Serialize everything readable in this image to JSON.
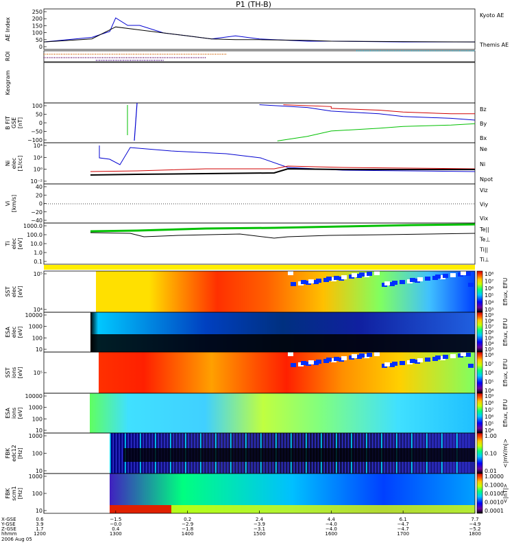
{
  "title": "P1 (TH-B)",
  "colors": {
    "red": "#d00000",
    "green": "#00c000",
    "blue": "#0000d0",
    "black": "#000000"
  },
  "panels": [
    {
      "id": "ae",
      "ylabel": [
        "AE Index"
      ],
      "ticks": [
        "250",
        "200",
        "150",
        "100",
        "50",
        "0"
      ],
      "legend": [
        {
          "text": "Kyoto AE",
          "color": "blue"
        },
        {
          "text": "Themis AE",
          "color": "black"
        }
      ]
    },
    {
      "id": "roi",
      "ylabel": [
        "ROI"
      ],
      "ticks": [],
      "legend": []
    },
    {
      "id": "keogram",
      "ylabel": [
        "Keogram"
      ],
      "ticks": [],
      "legend": []
    },
    {
      "id": "bfit",
      "ylabel": [
        "B FIT",
        "GSE",
        "[nT]"
      ],
      "ticks": [
        "100",
        "50",
        "0",
        "−50",
        "−100"
      ],
      "legend": [
        {
          "text": "Bz",
          "color": "red"
        },
        {
          "text": "By",
          "color": "green"
        },
        {
          "text": "Bx",
          "color": "blue"
        }
      ]
    },
    {
      "id": "ni",
      "ylabel": [
        "Ni",
        "elec",
        "[1/cc]"
      ],
      "ticks": [
        "10⁴",
        "10²",
        "10⁰",
        "10⁻²"
      ],
      "legend": [
        {
          "text": "Ne",
          "color": "red"
        },
        {
          "text": "Ni",
          "color": "black"
        },
        {
          "text": "Npot",
          "color": "blue"
        }
      ]
    },
    {
      "id": "vi",
      "ylabel": [
        "Vi",
        "[km/s]"
      ],
      "ticks": [
        "40",
        "20",
        "0",
        "−20",
        "−40"
      ],
      "legend": [
        {
          "text": "Viz",
          "color": "red"
        },
        {
          "text": "Viy",
          "color": "green"
        },
        {
          "text": "Vix",
          "color": "blue"
        }
      ]
    },
    {
      "id": "ti",
      "ylabel": [
        "Ti",
        "elec",
        "[eV]"
      ],
      "ticks": [
        "1000.0",
        "100.0",
        "10.0",
        "1.0",
        "0.1"
      ],
      "legend": [
        {
          "text": "Te||",
          "color": "black"
        },
        {
          "text": "Te⊥",
          "color": "red"
        },
        {
          "text": "Ti||",
          "color": "green"
        },
        {
          "text": "Ti⊥",
          "color": "blue"
        }
      ]
    },
    {
      "id": "sst_e",
      "ylabel": [
        "SST",
        "elec",
        "[eV]"
      ],
      "ticks": [
        "10⁵",
        "10⁴"
      ],
      "cbar": {
        "labels": [
          "10⁸",
          "10⁷",
          "10⁶",
          "10⁵",
          "10⁴",
          "10³"
        ],
        "title": "Eflux, EFU"
      }
    },
    {
      "id": "esa_e",
      "ylabel": [
        "ESA",
        "elec",
        "[eV]"
      ],
      "ticks": [
        "10000",
        "1000",
        "100",
        "10"
      ],
      "cbar": {
        "labels": [
          "10⁹",
          "10⁸",
          "10⁷",
          "10⁶",
          "10⁵",
          "10⁴",
          "10³"
        ],
        "title": "Eflux, EFU"
      }
    },
    {
      "id": "sst_i",
      "ylabel": [
        "SST",
        "ions",
        "[eV]"
      ],
      "ticks": [
        "10⁵"
      ],
      "cbar": {
        "labels": [
          "10⁸",
          "10⁷",
          "10⁶",
          "10⁵",
          "10⁴"
        ],
        "title": "Eflux, EFU"
      }
    },
    {
      "id": "esa_i",
      "ylabel": [
        "ESA",
        "ions",
        "[eV]"
      ],
      "ticks": [
        "10000",
        "1000",
        "100",
        "10"
      ],
      "cbar": {
        "labels": [
          "10⁹",
          "10⁸",
          "10⁷",
          "10⁶",
          "10⁵",
          "10⁴"
        ],
        "title": "Eflux, EFU"
      }
    },
    {
      "id": "fbk_e",
      "ylabel": [
        "FBK",
        "edc12",
        "[Hz]"
      ],
      "ticks": [
        "1000",
        "100",
        "10"
      ],
      "cbar": {
        "labels": [
          "1.00",
          "0.10",
          "0.01"
        ],
        "title": "<|mV/m|>"
      }
    },
    {
      "id": "fbk_b",
      "ylabel": [
        "FBK",
        "scm1",
        "[Hz]"
      ],
      "ticks": [
        "1000",
        "100",
        "10"
      ],
      "cbar": {
        "labels": [
          "1.0000",
          "0.1000",
          "0.0100",
          "0.0010",
          "0.0001"
        ],
        "title": "<|nT|>"
      }
    }
  ],
  "xaxis": {
    "row_labels": [
      "X-GSE",
      "Y-GSE",
      "Z-GSE",
      "hhmm",
      "2006 Aug 05"
    ],
    "columns": [
      {
        "vals": [
          "0.6",
          "3.9",
          "1.7",
          "1200"
        ]
      },
      {
        "vals": [
          "−1.5",
          "−0.0",
          "0.4",
          "1300"
        ]
      },
      {
        "vals": [
          "0.2",
          "−2.9",
          "−1.8",
          "1400"
        ]
      },
      {
        "vals": [
          "2.4",
          "−3.9",
          "−3.1",
          "1500"
        ]
      },
      {
        "vals": [
          "4.4",
          "−4.0",
          "−4.0",
          "1600"
        ]
      },
      {
        "vals": [
          "6.1",
          "−4.7",
          "−4.7",
          "1700"
        ]
      },
      {
        "vals": [
          "7.7",
          "−4.9",
          "−5.2",
          "1800"
        ]
      }
    ]
  },
  "chart_data": {
    "type": "line",
    "title": "P1 (TH-B)",
    "x_unit": "hhmm UT",
    "x": [
      "1200",
      "1300",
      "1400",
      "1500",
      "1600",
      "1700",
      "1800"
    ],
    "series": [
      {
        "name": "Kyoto AE",
        "panel": "AE Index",
        "x": [
          1200,
          1240,
          1255,
          1300,
          1310,
          1320,
          1340,
          1400,
          1420,
          1440,
          1500,
          1540,
          1600,
          1700,
          1800
        ],
        "values": [
          40,
          70,
          110,
          200,
          150,
          150,
          100,
          80,
          60,
          80,
          60,
          45,
          45,
          40,
          40
        ]
      },
      {
        "name": "Themis AE",
        "panel": "AE Index",
        "x": [
          1200,
          1240,
          1255,
          1300,
          1320,
          1340,
          1400,
          1420,
          1440,
          1500,
          1540,
          1600,
          1700,
          1800
        ],
        "values": [
          40,
          60,
          120,
          140,
          120,
          100,
          80,
          60,
          55,
          55,
          50,
          45,
          42,
          40
        ]
      },
      {
        "name": "Bz",
        "panel": "B FIT",
        "x": [
          1520,
          1560,
          1600,
          1640,
          1700,
          1740,
          1800
        ],
        "values": [
          100,
          90,
          80,
          70,
          60,
          50,
          50
        ]
      },
      {
        "name": "By",
        "panel": "B FIT",
        "x": [
          1515,
          1540,
          1600,
          1640,
          1700,
          1740,
          1800
        ],
        "values": [
          -100,
          -75,
          -45,
          -30,
          -20,
          -12,
          -5
        ]
      },
      {
        "name": "Bx",
        "panel": "B FIT",
        "x": [
          1500,
          1540,
          1600,
          1640,
          1700,
          1740,
          1800
        ],
        "values": [
          100,
          85,
          65,
          50,
          35,
          25,
          15
        ]
      }
    ]
  }
}
